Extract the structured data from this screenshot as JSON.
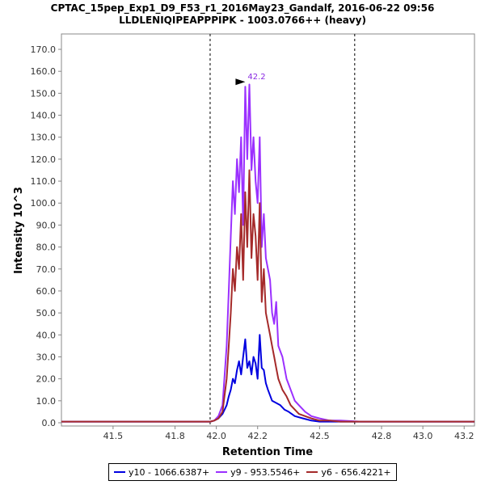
{
  "chart_data": {
    "type": "line",
    "title": "CPTAC_15pep_Exp1_D9_F53_r1_2016May23_Gandalf, 2016-06-22 09:56",
    "subtitle": "LLDLENIQIPEAPPPIPK - 1003.0766++ (heavy)",
    "xlabel": "Retention Time",
    "ylabel": "Intensity 10^3",
    "xlim": [
      41.25,
      43.25
    ],
    "ylim": [
      0,
      177
    ],
    "xticks": [
      41.5,
      41.8,
      42.0,
      42.2,
      42.5,
      42.8,
      43.0,
      43.2
    ],
    "xtick_labels": [
      "41.5",
      "41.8",
      "42.0",
      "42.2",
      "42.5",
      "42.8",
      "43.0",
      "43.2"
    ],
    "yticks": [
      0,
      10,
      20,
      30,
      40,
      50,
      60,
      70,
      80,
      90,
      100,
      110,
      120,
      130,
      140,
      150,
      160,
      170
    ],
    "ytick_labels": [
      "0.0",
      "10.0",
      "20.0",
      "30.0",
      "40.0",
      "50.0",
      "60.0",
      "70.0",
      "80.0",
      "90.0",
      "100.0",
      "110.0",
      "120.0",
      "130.0",
      "140.0",
      "150.0",
      "160.0",
      "170.0"
    ],
    "boundaries": [
      41.97,
      42.67
    ],
    "peak_annotation": {
      "x": 42.14,
      "y": 153,
      "label": "42.2"
    },
    "grid": false,
    "legend_position": "bottom",
    "series": [
      {
        "name": "y10 - 1066.6387+",
        "color": "#0000e0",
        "x": [
          41.25,
          41.95,
          41.97,
          41.99,
          42.01,
          42.03,
          42.05,
          42.06,
          42.07,
          42.08,
          42.09,
          42.1,
          42.11,
          42.12,
          42.13,
          42.14,
          42.15,
          42.16,
          42.17,
          42.18,
          42.19,
          42.2,
          42.21,
          42.22,
          42.23,
          42.24,
          42.25,
          42.27,
          42.29,
          42.31,
          42.33,
          42.35,
          42.38,
          42.42,
          42.46,
          42.5,
          42.55,
          42.6,
          43.25
        ],
        "y": [
          0.5,
          0.5,
          0.5,
          1,
          2,
          4,
          8,
          12,
          15,
          20,
          18,
          24,
          28,
          22,
          30,
          38,
          25,
          28,
          22,
          30,
          27,
          20,
          40,
          25,
          24,
          18,
          15,
          10,
          9,
          8,
          6,
          5,
          3,
          2,
          1,
          0.5,
          0.5,
          0.5,
          0.5
        ]
      },
      {
        "name": "y9 - 953.5546+",
        "color": "#9b30ff",
        "x": [
          41.25,
          41.95,
          41.97,
          41.99,
          42.01,
          42.03,
          42.05,
          42.06,
          42.07,
          42.08,
          42.09,
          42.1,
          42.11,
          42.12,
          42.13,
          42.14,
          42.15,
          42.16,
          42.17,
          42.18,
          42.19,
          42.2,
          42.21,
          42.22,
          42.23,
          42.24,
          42.25,
          42.26,
          42.27,
          42.28,
          42.29,
          42.3,
          42.32,
          42.34,
          42.36,
          42.38,
          42.4,
          42.43,
          42.46,
          42.5,
          42.55,
          42.6,
          42.7,
          43.25
        ],
        "y": [
          0.5,
          0.5,
          0.5,
          1,
          3,
          8,
          35,
          60,
          85,
          110,
          95,
          120,
          105,
          130,
          90,
          153,
          120,
          154,
          115,
          130,
          110,
          100,
          130,
          80,
          95,
          75,
          70,
          65,
          50,
          45,
          55,
          35,
          30,
          20,
          15,
          10,
          8,
          5,
          3,
          2,
          1,
          1,
          0.5,
          0.5
        ]
      },
      {
        "name": "y6 - 656.4221+",
        "color": "#a52a2a",
        "x": [
          41.25,
          41.95,
          41.97,
          41.99,
          42.01,
          42.03,
          42.05,
          42.06,
          42.07,
          42.08,
          42.09,
          42.1,
          42.11,
          42.12,
          42.13,
          42.14,
          42.15,
          42.16,
          42.17,
          42.18,
          42.19,
          42.2,
          42.21,
          42.22,
          42.23,
          42.24,
          42.25,
          42.26,
          42.27,
          42.28,
          42.29,
          42.3,
          42.32,
          42.34,
          42.36,
          42.38,
          42.4,
          42.43,
          42.46,
          42.5,
          42.55,
          42.6,
          42.7,
          43.25
        ],
        "y": [
          0.5,
          0.5,
          0.5,
          1,
          2,
          5,
          20,
          35,
          50,
          70,
          60,
          80,
          70,
          95,
          65,
          105,
          80,
          115,
          75,
          95,
          85,
          65,
          100,
          55,
          70,
          50,
          45,
          40,
          35,
          30,
          25,
          20,
          15,
          12,
          8,
          6,
          4,
          3,
          2,
          1,
          1,
          0.5,
          0.5,
          0.5
        ]
      }
    ]
  }
}
